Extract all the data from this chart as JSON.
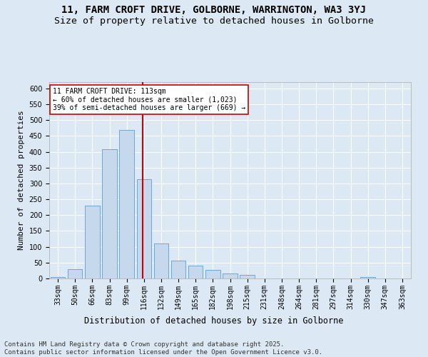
{
  "title_line1": "11, FARM CROFT DRIVE, GOLBORNE, WARRINGTON, WA3 3YJ",
  "title_line2": "Size of property relative to detached houses in Golborne",
  "xlabel": "Distribution of detached houses by size in Golborne",
  "ylabel": "Number of detached properties",
  "categories": [
    "33sqm",
    "50sqm",
    "66sqm",
    "83sqm",
    "99sqm",
    "116sqm",
    "132sqm",
    "149sqm",
    "165sqm",
    "182sqm",
    "198sqm",
    "215sqm",
    "231sqm",
    "248sqm",
    "264sqm",
    "281sqm",
    "297sqm",
    "314sqm",
    "330sqm",
    "347sqm",
    "363sqm"
  ],
  "values": [
    5,
    30,
    230,
    408,
    470,
    313,
    111,
    57,
    40,
    27,
    15,
    11,
    0,
    0,
    0,
    0,
    0,
    0,
    4,
    0,
    0
  ],
  "bar_color": "#c5d8ec",
  "bar_edge_color": "#5a9fd4",
  "vline_x": 5,
  "vline_color": "#cc0000",
  "annotation_text": "11 FARM CROFT DRIVE: 113sqm\n← 60% of detached houses are smaller (1,023)\n39% of semi-detached houses are larger (669) →",
  "annotation_box_color": "#ffffff",
  "annotation_box_edge": "#cc0000",
  "ylim": [
    0,
    620
  ],
  "yticks": [
    0,
    50,
    100,
    150,
    200,
    250,
    300,
    350,
    400,
    450,
    500,
    550,
    600
  ],
  "background_color": "#dce9f5",
  "plot_bg_color": "#dce9f5",
  "footer_text": "Contains HM Land Registry data © Crown copyright and database right 2025.\nContains public sector information licensed under the Open Government Licence v3.0.",
  "title_fontsize": 10,
  "subtitle_fontsize": 9.5,
  "xlabel_fontsize": 8.5,
  "ylabel_fontsize": 8,
  "tick_fontsize": 7,
  "footer_fontsize": 6.5
}
